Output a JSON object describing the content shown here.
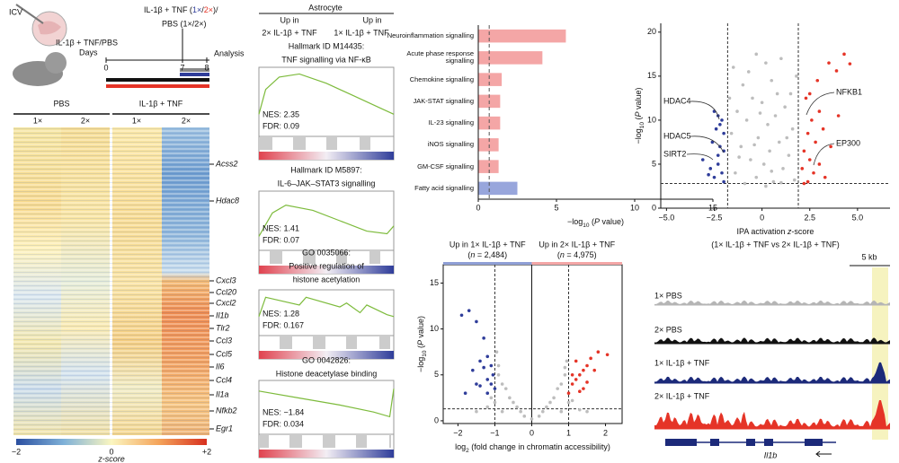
{
  "schematic": {
    "route": "ICV",
    "treatment_left": "IL-1β + TNF/PBS",
    "treatment_right": [
      "IL-1β + TNF (",
      "1×",
      "/",
      "2×",
      ")/"
    ],
    "treatment_right_2": "PBS (1×/2×)",
    "days_label": "Days",
    "days": [
      0,
      7,
      8
    ],
    "endpoint": "Analysis"
  },
  "heatmap": {
    "groups": [
      "PBS",
      "IL-1β + TNF"
    ],
    "doses": [
      "1×",
      "2×",
      "1×",
      "2×"
    ],
    "genes": [
      "Acss2",
      "Hdac8",
      "Cxcl3",
      "Ccl20",
      "Cxcl2",
      "Il1b",
      "Tlr2",
      "Ccl3",
      "Ccl5",
      "Il6",
      "Ccl4",
      "Il1a",
      "Nfkb2",
      "Egr1"
    ],
    "colorbar_ticks": [
      "−2",
      "0",
      "+2"
    ],
    "colorbar_label": "z-score"
  },
  "gsea": {
    "cell_type": "Astrocyte",
    "left_header": [
      "Up in",
      "2× IL-1β + TNF"
    ],
    "right_header": [
      "Up in",
      "1× IL-1β + TNF"
    ],
    "panels": [
      {
        "title": [
          "Hallmark ID M14435:",
          "TNF signalling via NF-κB"
        ],
        "nes": "NES: 2.35",
        "fdr": "FDR: 0.09"
      },
      {
        "title": [
          "Hallmark ID M5897:",
          "IL-6–JAK–STAT3 signalling"
        ],
        "nes": "NES: 1.41",
        "fdr": "FDR: 0.07"
      },
      {
        "title": [
          "GO 0035066:",
          "Positive regulation of",
          "histone acetylation"
        ],
        "nes": "NES: 1.28",
        "fdr": "FDR: 0.167"
      },
      {
        "title": [
          "GO 0042826:",
          "Histone deacetylase binding"
        ],
        "nes": "NES: −1.84",
        "fdr": "FDR: 0.034"
      }
    ]
  },
  "chart_data": [
    {
      "type": "bar",
      "orientation": "horizontal",
      "categories": [
        "Neuroinflammation signalling",
        "Acute phase response signalling",
        "Chemokine signalling",
        "JAK-STAT signalling",
        "IL-23 signalling",
        "iNOS signalling",
        "GM-CSF signalling",
        "Fatty acid signalling"
      ],
      "values": [
        5.6,
        4.1,
        1.5,
        1.4,
        1.4,
        1.3,
        1.3,
        2.5
      ],
      "colors": [
        "#f4a6a6",
        "#f4a6a6",
        "#f4a6a6",
        "#f4a6a6",
        "#f4a6a6",
        "#f4a6a6",
        "#f4a6a6",
        "#98a6dc"
      ],
      "xlim": [
        0,
        15
      ],
      "xticks": [
        0,
        5,
        10,
        15
      ],
      "threshold": 0.7,
      "xlabel": [
        "−log",
        "10",
        " (",
        "P",
        " value)"
      ]
    },
    {
      "type": "scatter",
      "series": [
        {
          "color": "#bdbdbd",
          "x": [
            -1.5,
            -0.3,
            0.2,
            1.0,
            -1.0,
            0.5,
            1.5,
            -0.5,
            0.0,
            1.2,
            -1.3,
            0.7,
            -0.8,
            0.3,
            1.6,
            -1.6,
            -0.2,
            0.9,
            -1.1,
            0.4,
            1.4,
            -0.6,
            0.1,
            1.1,
            -1.4,
            -0.3,
            0.6,
            1.7,
            -0.9,
            0.2,
            -1.7,
            1.8,
            -0.7,
            0.8,
            -0.1,
            1.3,
            -1.2,
            0.5,
            -0.4,
            1.0
          ],
          "values": [
            16,
            17.5,
            16.5,
            17,
            14,
            14.5,
            13,
            12.5,
            12,
            11.5,
            11,
            10.5,
            10,
            9.5,
            9,
            8.5,
            8,
            7.5,
            7,
            6.5,
            6,
            5.5,
            5,
            4.5,
            4,
            3.5,
            3,
            3.2,
            2.8,
            2.5,
            12.5,
            15,
            15.5,
            13,
            10.8,
            8,
            5.8,
            4.2,
            7.2,
            2.9
          ]
        },
        {
          "color": "#2f3d9a",
          "x": [
            -2.5,
            -2.3,
            -2.1,
            -2.4,
            -2.0,
            -2.6,
            -2.2,
            -2.0,
            -3.1,
            -2.3,
            -2.7,
            -2.1,
            -2.5,
            -2.0,
            -2.8,
            -2.2,
            -2.3
          ],
          "values": [
            11,
            10.5,
            10,
            9,
            8.5,
            7.5,
            7,
            6.5,
            5.5,
            5,
            4.5,
            4,
            3.5,
            3,
            3.8,
            9.5,
            6
          ]
        },
        {
          "color": "#e53427",
          "x": [
            2.5,
            3.5,
            4.3,
            3.9,
            2.9,
            2.3,
            3.0,
            2.6,
            4.0,
            3.2,
            2.4,
            2.8,
            3.6,
            2.2,
            2.5,
            3.0,
            2.1,
            2.7,
            3.3,
            2.4,
            2.2,
            4.6
          ],
          "values": [
            13,
            16.5,
            17.5,
            15.6,
            14.5,
            12.5,
            11,
            10,
            10.5,
            9,
            8.5,
            7.5,
            7,
            6.5,
            5.5,
            5,
            4.5,
            4,
            3.5,
            3,
            2.8,
            16.4
          ]
        }
      ],
      "xlim": [
        -5.3,
        6.7
      ],
      "ylim": [
        0,
        21
      ],
      "xticks": [
        {
          "value": -5,
          "label": "−5.0"
        },
        {
          "value": -2.5,
          "label": "−2.5"
        },
        0,
        2.5,
        {
          "value": 5,
          "label": "5.0"
        }
      ],
      "yticks": [
        0,
        5,
        10,
        15,
        20
      ],
      "vlines": [
        -1.8,
        1.9
      ],
      "hline": 2.8,
      "labels": [
        "HDAC4",
        "HDAC5",
        "SIRT2",
        "NFKB1",
        "EP300"
      ],
      "xlabel": [
        "IPA activation ",
        "z",
        "-score"
      ],
      "xlabel2": "(1× IL-1β + TNF vs 2× IL-1β + TNF)",
      "ylabel": [
        "−log",
        "10",
        " (",
        "P",
        " value)"
      ]
    },
    {
      "type": "scatter",
      "box": true,
      "header_left": "Up in 1× IL-1β + TNF",
      "count_left": [
        "(",
        "n",
        " = 2,484)"
      ],
      "header_right": "Up in 2× IL-1β + TNF",
      "count_right": [
        "(",
        "n",
        " = 4,975)"
      ],
      "series": [
        {
          "color": "#bdbdbd",
          "x": [
            -0.9,
            -0.7,
            -0.5,
            -0.3,
            0.0,
            0.3,
            0.5,
            0.7,
            0.9,
            -0.8,
            0.8,
            -0.6,
            0.6,
            -0.2,
            0.2,
            -1.0,
            1.0,
            -0.95,
            0.95,
            -0.4,
            0.4,
            -1.5,
            1.5,
            -0.8,
            0.8,
            -1.1,
            1.1,
            -0.9,
            0.9,
            -1.2,
            1.3
          ],
          "values": [
            5,
            3.5,
            2,
            1,
            0.2,
            1,
            2,
            3.5,
            5,
            4,
            4,
            2.5,
            2.5,
            0.5,
            0.5,
            2,
            2,
            7.5,
            6.5,
            1.5,
            1.5,
            1,
            1,
            1,
            1,
            2.5,
            2.2,
            6,
            5.8,
            1.5,
            1.2
          ]
        },
        {
          "color": "#2f3d9a",
          "x": [
            -1.9,
            -1.7,
            -1.5,
            -1.3,
            -1.2,
            -1.1,
            -1.05,
            -1.4,
            -1.6,
            -1.2,
            -1.3,
            -1.1,
            -1.5,
            -1.0,
            -1.2,
            -1.4,
            -1.8
          ],
          "values": [
            11.5,
            12,
            10.8,
            9,
            7,
            6,
            5,
            6.5,
            5.5,
            4.5,
            5.8,
            4,
            4,
            3.5,
            3,
            3.8,
            3
          ]
        },
        {
          "color": "#e53427",
          "x": [
            1.0,
            1.1,
            1.2,
            1.3,
            1.4,
            1.5,
            1.2,
            1.6,
            1.8,
            1.4,
            1.1,
            1.7,
            1.3,
            2.05,
            1.5
          ],
          "values": [
            3,
            4,
            4.5,
            5,
            5.5,
            6,
            6.5,
            6.8,
            7.5,
            3.5,
            5,
            5.5,
            3.2,
            7.2,
            4.2
          ]
        }
      ],
      "xlim": [
        -2.4,
        2.45
      ],
      "ylim": [
        -0.3,
        17
      ],
      "xticks": [
        {
          "value": -2,
          "label": "−2"
        },
        {
          "value": -1,
          "label": "−1"
        },
        0,
        1,
        2
      ],
      "yticks": [
        0,
        5,
        10,
        15
      ],
      "vlines": [
        -1,
        1
      ],
      "hline": 1.3,
      "xlabel": [
        "log",
        "2",
        " (fold change in chromatin accessibility)"
      ],
      "ylabel": [
        "−log",
        "10",
        " (",
        "P",
        " value)"
      ]
    }
  ],
  "tracks": {
    "scale": "5 kb",
    "labels": [
      "1× PBS",
      "2× PBS",
      "1× IL-1β + TNF",
      "2× IL-1β + TNF"
    ],
    "gene": "Il1b"
  }
}
